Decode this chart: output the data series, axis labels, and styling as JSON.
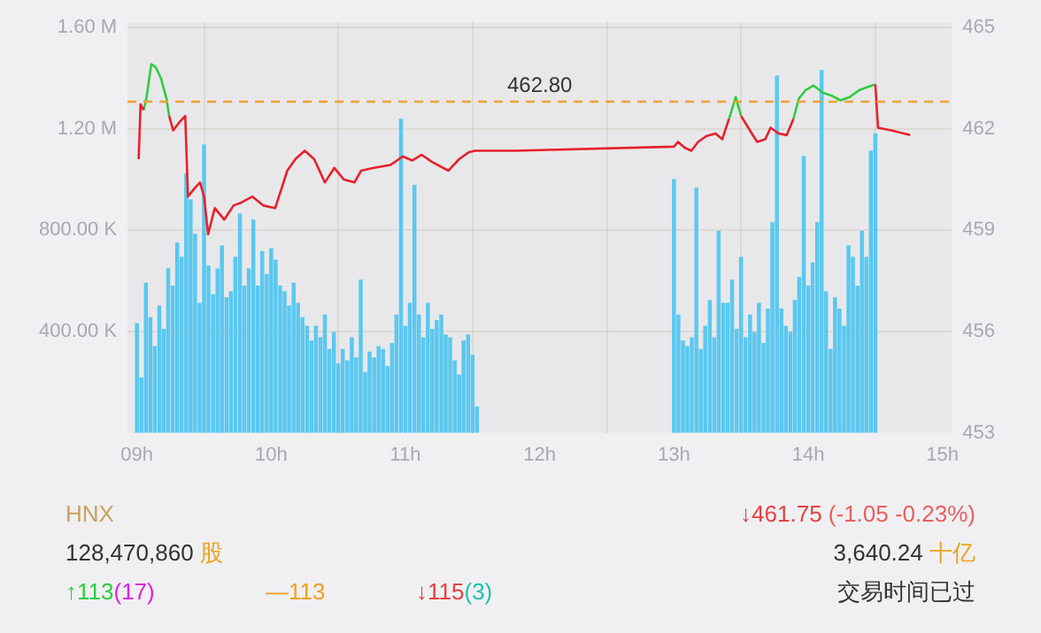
{
  "chart_data": {
    "type": "bar",
    "grid": true,
    "legend": false,
    "marker": "none",
    "xlim": [
      8.93,
      15.07
    ],
    "xticks": [
      {
        "value": 9,
        "label": "09h"
      },
      {
        "value": 10,
        "label": "10h"
      },
      {
        "value": 11,
        "label": "11h"
      },
      {
        "value": 12,
        "label": "12h"
      },
      {
        "value": 13,
        "label": "13h"
      },
      {
        "value": 14,
        "label": "14h"
      },
      {
        "value": 15,
        "label": "15h"
      }
    ],
    "ylim": [
      0,
      1620000
    ],
    "yticks": [
      {
        "value": 400000,
        "label": "400.00 K"
      },
      {
        "value": 800000,
        "label": "800.00 K"
      },
      {
        "value": 1200000,
        "label": "1.20 M"
      },
      {
        "value": 1600000,
        "label": "1.60 M"
      }
    ],
    "y2lim": [
      453,
      465.15
    ],
    "y2ticks": [
      453,
      456,
      459,
      462,
      465
    ],
    "ref_lines": [
      {
        "axis": "y2",
        "value": 462.8,
        "label": "462.80",
        "color": "#f0a030",
        "line_style": "dashed"
      }
    ],
    "series": [
      {
        "color": "#5bc8f0",
        "x": [
          9.0,
          9.033,
          9.067,
          9.1,
          9.133,
          9.167,
          9.2,
          9.233,
          9.267,
          9.3,
          9.333,
          9.367,
          9.4,
          9.433,
          9.467,
          9.5,
          9.533,
          9.567,
          9.6,
          9.633,
          9.667,
          9.7,
          9.733,
          9.767,
          9.8,
          9.833,
          9.867,
          9.9,
          9.933,
          9.967,
          10.0,
          10.033,
          10.067,
          10.1,
          10.133,
          10.167,
          10.2,
          10.233,
          10.267,
          10.3,
          10.333,
          10.367,
          10.4,
          10.433,
          10.467,
          10.5,
          10.533,
          10.567,
          10.6,
          10.633,
          10.667,
          10.7,
          10.733,
          10.767,
          10.8,
          10.833,
          10.867,
          10.9,
          10.933,
          10.967,
          11.0,
          11.033,
          11.067,
          11.1,
          11.133,
          11.167,
          11.2,
          11.233,
          11.267,
          11.3,
          11.333,
          11.367,
          11.4,
          11.433,
          11.467,
          11.5,
          11.533,
          13.0,
          13.033,
          13.067,
          13.1,
          13.133,
          13.167,
          13.2,
          13.233,
          13.267,
          13.3,
          13.333,
          13.367,
          13.4,
          13.433,
          13.467,
          13.5,
          13.533,
          13.567,
          13.6,
          13.633,
          13.667,
          13.7,
          13.733,
          13.767,
          13.8,
          13.833,
          13.867,
          13.9,
          13.933,
          13.967,
          14.0,
          14.033,
          14.067,
          14.1,
          14.133,
          14.167,
          14.2,
          14.233,
          14.267,
          14.3,
          14.333,
          14.367,
          14.4,
          14.433,
          14.467,
          14.5
        ],
        "values": [
          431000,
          216000,
          590000,
          454000,
          340000,
          500000,
          408000,
          647000,
          579000,
          749000,
          692000,
          1021000,
          919000,
          783000,
          511000,
          1135000,
          658000,
          545000,
          647000,
          738000,
          533000,
          556000,
          692000,
          863000,
          579000,
          647000,
          840000,
          579000,
          715000,
          624000,
          726000,
          681000,
          579000,
          556000,
          500000,
          590000,
          511000,
          454000,
          420000,
          363000,
          420000,
          375000,
          465000,
          329000,
          397000,
          272000,
          329000,
          284000,
          375000,
          295000,
          602000,
          238000,
          318000,
          295000,
          340000,
          329000,
          261000,
          352000,
          465000,
          1237000,
          420000,
          511000,
          976000,
          465000,
          375000,
          511000,
          408000,
          443000,
          465000,
          386000,
          375000,
          284000,
          227000,
          363000,
          386000,
          306000,
          102000,
          999000,
          465000,
          363000,
          340000,
          375000,
          965000,
          329000,
          420000,
          522000,
          375000,
          795000,
          511000,
          511000,
          602000,
          408000,
          692000,
          375000,
          465000,
          397000,
          511000,
          352000,
          488000,
          829000,
          1407000,
          488000,
          420000,
          397000,
          522000,
          613000,
          1090000,
          579000,
          670000,
          829000,
          1430000,
          556000,
          329000,
          533000,
          488000,
          420000,
          738000,
          692000,
          579000,
          795000,
          692000,
          1112000,
          1180000
        ]
      },
      {
        "type": "line",
        "color": "#e8202a",
        "axis": "y2",
        "x": [
          9.013,
          9.027,
          9.05,
          9.07,
          9.107,
          9.14,
          9.18,
          9.22,
          9.24,
          9.27,
          9.32,
          9.36,
          9.38,
          9.43,
          9.47,
          9.5,
          9.53,
          9.58,
          9.65,
          9.72,
          9.78,
          9.86,
          9.94,
          10.03,
          10.12,
          10.18,
          10.25,
          10.32,
          10.4,
          10.47,
          10.54,
          10.62,
          10.67,
          10.76,
          10.89,
          10.98,
          11.05,
          11.12,
          11.2,
          11.32,
          11.4,
          11.47,
          11.52,
          11.82,
          13.0,
          13.03,
          13.08,
          13.13,
          13.18,
          13.24,
          13.31,
          13.36,
          13.41,
          13.46,
          13.5,
          13.58,
          13.62,
          13.68,
          13.72,
          13.78,
          13.84,
          13.89,
          13.93,
          13.98,
          14.04,
          14.11,
          14.18,
          14.24,
          14.31,
          14.38,
          14.44,
          14.5,
          14.52,
          14.62,
          14.76
        ],
        "values": [
          461.1,
          462.72,
          462.55,
          null,
          null,
          null,
          null,
          null,
          462.38,
          461.95,
          462.21,
          462.38,
          459.99,
          460.24,
          460.41,
          459.99,
          458.88,
          459.65,
          459.31,
          459.73,
          459.82,
          459.99,
          459.73,
          459.65,
          460.76,
          461.1,
          461.35,
          461.1,
          460.41,
          460.84,
          460.5,
          460.41,
          460.76,
          460.84,
          460.93,
          461.18,
          461.06,
          461.23,
          461.01,
          460.76,
          461.1,
          461.3,
          461.35,
          461.35,
          461.47,
          461.61,
          461.44,
          461.35,
          461.61,
          461.78,
          461.86,
          461.69,
          462.29,
          null,
          462.38,
          461.86,
          461.61,
          461.69,
          462.03,
          461.86,
          461.81,
          462.29,
          null,
          null,
          null,
          null,
          null,
          null,
          null,
          null,
          null,
          463.31,
          462.03,
          461.95,
          461.81
        ]
      },
      {
        "type": "line",
        "color": "#2ecc40",
        "axis": "y2",
        "x": [
          9.05,
          9.07,
          9.107,
          9.14,
          9.18,
          9.22,
          9.24,
          9.27,
          9.32,
          9.36,
          9.38,
          9.43,
          9.47,
          9.5,
          9.53,
          9.58,
          9.65,
          9.72,
          9.78,
          9.86,
          9.94,
          10.03,
          10.12,
          10.18,
          10.25,
          10.32,
          10.4,
          10.47,
          10.54,
          10.62,
          10.67,
          10.76,
          10.89,
          10.98,
          11.05,
          11.12,
          11.2,
          11.32,
          11.4,
          11.47,
          11.52,
          11.82,
          13.0,
          13.03,
          13.08,
          13.13,
          13.18,
          13.24,
          13.31,
          13.36,
          13.41,
          13.46,
          13.5,
          13.58,
          13.62,
          13.68,
          13.72,
          13.78,
          13.84,
          13.89,
          13.93,
          13.98,
          14.04,
          14.11,
          14.18,
          14.24,
          14.31,
          14.38,
          14.44,
          14.5
        ],
        "values": [
          462.55,
          462.89,
          463.91,
          463.82,
          463.48,
          462.89,
          462.38,
          null,
          null,
          null,
          null,
          null,
          null,
          null,
          null,
          null,
          null,
          null,
          null,
          null,
          null,
          null,
          null,
          null,
          null,
          null,
          null,
          null,
          null,
          null,
          null,
          null,
          null,
          null,
          null,
          null,
          null,
          null,
          null,
          null,
          null,
          null,
          null,
          null,
          null,
          null,
          null,
          null,
          null,
          null,
          462.29,
          462.94,
          462.38,
          null,
          null,
          null,
          null,
          null,
          null,
          462.29,
          462.89,
          463.14,
          463.28,
          463.06,
          462.97,
          462.84,
          462.94,
          463.14,
          463.23,
          463.31
        ]
      }
    ],
    "annotations": [
      "HNX",
      "↓461.75 (-1.05 -0.23%)",
      "128,470,860 股",
      "3,640.24 十亿",
      "↑113(17)",
      "—113",
      "↓115(3)",
      "交易时间已过"
    ]
  }
}
